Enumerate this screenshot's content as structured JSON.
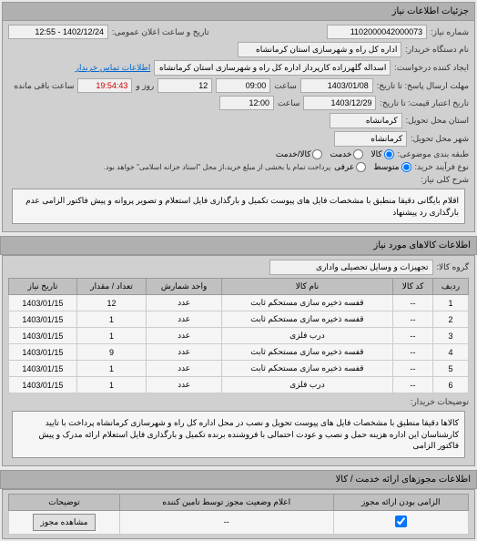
{
  "header": {
    "title": "جزئیات اطلاعات نیاز"
  },
  "info": {
    "req_no_label": "شماره نیاز:",
    "req_no": "1102000042000073",
    "datetime_label": "تاریخ و ساعت اعلان عمومی:",
    "datetime": "1402/12/24 - 12:55",
    "buyer_label": "نام دستگاه خریدار:",
    "buyer": "اداره کل راه و شهرسازی استان کرمانشاه",
    "requester_label": "ایجاد کننده درخواست:",
    "requester": "اسداله گلهرزاده کارپرداز اداره کل راه و شهرسازی استان کرمانشاه",
    "contact_link": "اطلاعات تماس خریدار",
    "deadline_submit_label": "مهلت ارسال پاسخ: تا تاریخ:",
    "deadline_submit_date": "1403/01/08",
    "deadline_submit_time_label": "ساعت",
    "deadline_submit_time": "09:00",
    "days_left": "12",
    "days_left_label": "روز و",
    "countdown": "19:54:43",
    "countdown_label": "ساعت باقی مانده",
    "deadline_price_label": "تاریخ اعتبار قیمت: تا تاریخ:",
    "deadline_price_date": "1403/12/29",
    "deadline_price_time_label": "ساعت",
    "deadline_price_time": "12:00",
    "province_label": "استان محل تحویل:",
    "province": "کرمانشاه",
    "city_label": "شهر محل تحویل:",
    "city": "کرمانشاه",
    "budget_label": "طبقه بندی موضوعی:",
    "budget_opts": [
      "کالا",
      "خدمت",
      "کالا/خدمت"
    ],
    "contract_label": "نوع فرآیند خرید:",
    "contract_opts": [
      "متوسط",
      "عرفی"
    ],
    "contract_note": "پرداخت تمام یا بخشی از مبلغ خرید،از محل \"اسناد خزانه اسلامی\" خواهد بود.",
    "desc_label": "شرح کلی نیاز:",
    "desc": "اقلام بایگانی دقیقا منطبق با مشخصات فایل های پیوست تکمیل و بارگذاری فایل استعلام و تصویر پروانه و پیش فاکتور الزامی عدم بارگذاری رد پیشنهاد"
  },
  "goods": {
    "title": "اطلاعات کالاهای مورد نیاز",
    "group_label": "گروه کالا:",
    "group": "تجهیزات و وسایل تحصیلی واداری",
    "columns": [
      "ردیف",
      "کد کالا",
      "نام کالا",
      "واحد شمارش",
      "تعداد / مقدار",
      "تاریخ نیاز"
    ],
    "rows": [
      [
        "1",
        "--",
        "قفسه ذخیره سازی مستحکم ثابت",
        "عدد",
        "12",
        "1403/01/15"
      ],
      [
        "2",
        "--",
        "قفسه ذخیره سازی مستحکم ثابت",
        "عدد",
        "1",
        "1403/01/15"
      ],
      [
        "3",
        "--",
        "درب فلزی",
        "عدد",
        "1",
        "1403/01/15"
      ],
      [
        "4",
        "--",
        "قفسه ذخیره سازی مستحکم ثابت",
        "عدد",
        "9",
        "1403/01/15"
      ],
      [
        "5",
        "--",
        "قفسه ذخیره سازی مستحکم ثابت",
        "عدد",
        "1",
        "1403/01/15"
      ],
      [
        "6",
        "--",
        "درب فلزی",
        "عدد",
        "1",
        "1403/01/15"
      ]
    ],
    "buyer_note_label": "توضیحات خریدار:",
    "buyer_note": "کالاها دقیقا منطبق با مشخصات فایل های پیوست تحویل و نصب در محل اداره کل راه و شهرسازی کرمانشاه پرداخت با تایید کارشناسان این اداره هزینه حمل و نصب و عودت احتمالی با فروشنده برنده تکمیل و بارگذاری فایل استعلام ارائه مدرک و پیش فاکتور الزامی"
  },
  "license": {
    "title": "اطلاعات مجوزهای ارائه خدمت / کالا",
    "mandatory_label": "الزامی بودن ارائه مجوز",
    "status_label": "اعلام وضعیت مجوز توسط تامین کننده",
    "explain_label": "توضیحات",
    "status_val": "--",
    "btn": "مشاهده مجوز"
  }
}
